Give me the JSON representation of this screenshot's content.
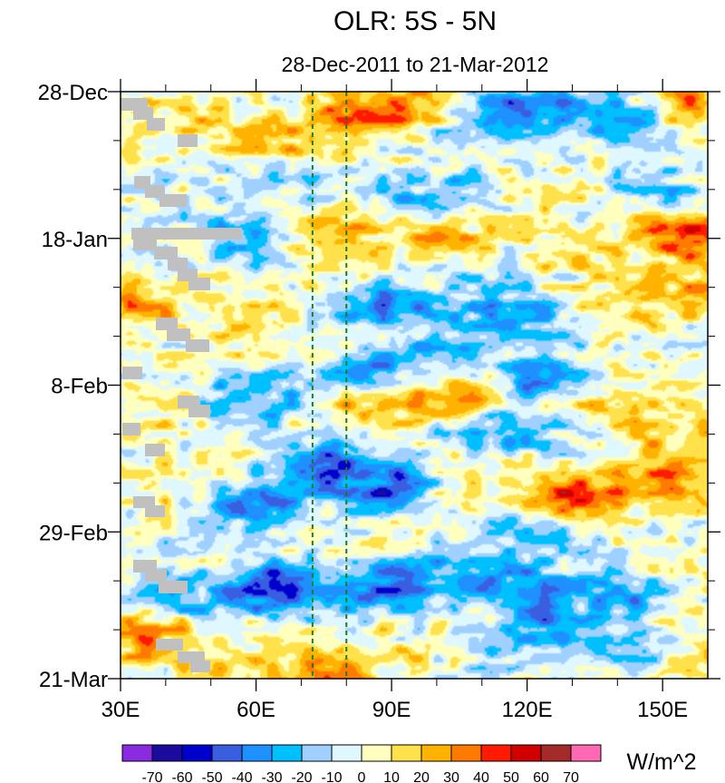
{
  "chart_data": {
    "type": "heatmap",
    "title": "OLR: 5S - 5N",
    "subtitle": "28-Dec-2011 to 21-Mar-2012",
    "x_axis": {
      "range": [
        30,
        160
      ],
      "ticks": [
        {
          "value": 30,
          "label": "30E"
        },
        {
          "value": 60,
          "label": "60E"
        },
        {
          "value": 90,
          "label": "90E"
        },
        {
          "value": 120,
          "label": "120E"
        },
        {
          "value": 150,
          "label": "150E"
        }
      ]
    },
    "y_axis": {
      "range_days": [
        0,
        84
      ],
      "direction": "time increases downward",
      "ticks": [
        {
          "day": 0,
          "label": "28-Dec"
        },
        {
          "day": 21,
          "label": "18-Jan"
        },
        {
          "day": 42,
          "label": "8-Feb"
        },
        {
          "day": 63,
          "label": "29-Feb"
        },
        {
          "day": 84,
          "label": "21-Mar"
        }
      ]
    },
    "reference_lines_lon": [
      72.5,
      80
    ],
    "colorbar": {
      "units": "W/m^2",
      "levels": [
        -70,
        -60,
        -50,
        -40,
        -30,
        -20,
        -10,
        0,
        10,
        20,
        30,
        40,
        50,
        60,
        70
      ],
      "labels": [
        "-70",
        "-60",
        "-50",
        "-40",
        "-30",
        "-20",
        "-10",
        "0",
        "10",
        "20",
        "30",
        "40",
        "50",
        "60",
        "70"
      ],
      "colors": [
        "#8a2be2",
        "#1a0a9e",
        "#0000cd",
        "#3a5ee0",
        "#1e90ff",
        "#00bfff",
        "#9fd0ff",
        "#dff7ff",
        "#ffffbe",
        "#ffe14c",
        "#ffb300",
        "#ff7a00",
        "#ff1a00",
        "#d00000",
        "#a52a2a",
        "#ff69b4"
      ]
    },
    "features": [
      {
        "lon": 85,
        "day": 3,
        "value": 45
      },
      {
        "lon": 95,
        "day": 2,
        "value": 35
      },
      {
        "lon": 72,
        "day": 7,
        "value": 30
      },
      {
        "lon": 62,
        "day": 6,
        "value": 20
      },
      {
        "lon": 45,
        "day": 4,
        "value": 15
      },
      {
        "lon": 110,
        "day": 4,
        "value": -30
      },
      {
        "lon": 122,
        "day": 3,
        "value": -55
      },
      {
        "lon": 138,
        "day": 4,
        "value": -35
      },
      {
        "lon": 158,
        "day": 1,
        "value": 40
      },
      {
        "lon": 150,
        "day": 14,
        "value": -20
      },
      {
        "lon": 100,
        "day": 15,
        "value": -30
      },
      {
        "lon": 70,
        "day": 12,
        "value": -20
      },
      {
        "lon": 50,
        "day": 14,
        "value": -10
      },
      {
        "lon": 75,
        "day": 21,
        "value": 35
      },
      {
        "lon": 100,
        "day": 20,
        "value": 25
      },
      {
        "lon": 60,
        "day": 21,
        "value": -35
      },
      {
        "lon": 155,
        "day": 21,
        "value": 55
      },
      {
        "lon": 130,
        "day": 22,
        "value": 15
      },
      {
        "lon": 90,
        "day": 31,
        "value": -50
      },
      {
        "lon": 110,
        "day": 30,
        "value": -30
      },
      {
        "lon": 120,
        "day": 33,
        "value": -40
      },
      {
        "lon": 140,
        "day": 31,
        "value": 20
      },
      {
        "lon": 155,
        "day": 28,
        "value": 35
      },
      {
        "lon": 35,
        "day": 30,
        "value": 30
      },
      {
        "lon": 60,
        "day": 33,
        "value": 20
      },
      {
        "lon": 75,
        "day": 37,
        "value": 10
      },
      {
        "lon": 85,
        "day": 40,
        "value": -50
      },
      {
        "lon": 100,
        "day": 37,
        "value": -30
      },
      {
        "lon": 88,
        "day": 44,
        "value": 40
      },
      {
        "lon": 105,
        "day": 43,
        "value": 30
      },
      {
        "lon": 60,
        "day": 44,
        "value": -35
      },
      {
        "lon": 122,
        "day": 41,
        "value": -45
      },
      {
        "lon": 138,
        "day": 44,
        "value": 20
      },
      {
        "lon": 155,
        "day": 40,
        "value": 10
      },
      {
        "lon": 35,
        "day": 46,
        "value": 15
      },
      {
        "lon": 115,
        "day": 48,
        "value": -30
      },
      {
        "lon": 75,
        "day": 54,
        "value": -60
      },
      {
        "lon": 90,
        "day": 57,
        "value": -65
      },
      {
        "lon": 60,
        "day": 59,
        "value": -45
      },
      {
        "lon": 128,
        "day": 58,
        "value": 55
      },
      {
        "lon": 148,
        "day": 56,
        "value": 45
      },
      {
        "lon": 155,
        "day": 50,
        "value": 30
      },
      {
        "lon": 105,
        "day": 57,
        "value": 15
      },
      {
        "lon": 40,
        "day": 56,
        "value": 10
      },
      {
        "lon": 120,
        "day": 63,
        "value": -30
      },
      {
        "lon": 95,
        "day": 63,
        "value": 0
      },
      {
        "lon": 65,
        "day": 71,
        "value": -65
      },
      {
        "lon": 88,
        "day": 71,
        "value": -60
      },
      {
        "lon": 118,
        "day": 71,
        "value": -45
      },
      {
        "lon": 140,
        "day": 72,
        "value": -40
      },
      {
        "lon": 105,
        "day": 68,
        "value": -40
      },
      {
        "lon": 45,
        "day": 72,
        "value": -30
      },
      {
        "lon": 155,
        "day": 66,
        "value": 0
      },
      {
        "lon": 35,
        "day": 78,
        "value": 40
      },
      {
        "lon": 55,
        "day": 82,
        "value": 25
      },
      {
        "lon": 75,
        "day": 83,
        "value": 35
      },
      {
        "lon": 95,
        "day": 81,
        "value": 15
      },
      {
        "lon": 125,
        "day": 77,
        "value": -45
      },
      {
        "lon": 140,
        "day": 80,
        "value": -25
      },
      {
        "lon": 110,
        "day": 80,
        "value": -20
      },
      {
        "lon": 158,
        "day": 82,
        "value": 10
      }
    ]
  }
}
